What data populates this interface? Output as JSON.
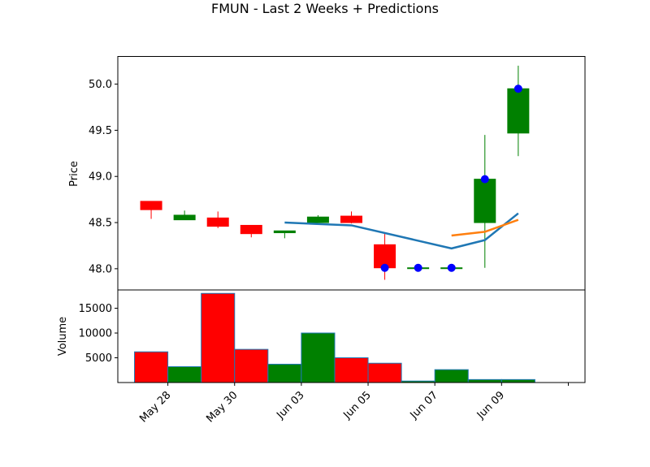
{
  "chart_data": {
    "type": "candlestick",
    "title": "FMUN - Last 2 Weeks + Predictions",
    "price_panel": {
      "ylabel": "Price",
      "ylim": [
        47.77,
        50.3
      ],
      "yticks": [
        48.0,
        48.5,
        49.0,
        49.5,
        50.0
      ],
      "ytick_labels": [
        "48.0",
        "48.5",
        "49.0",
        "49.5",
        "50.0"
      ]
    },
    "volume_panel": {
      "ylabel": "Volume",
      "ylim": [
        0,
        18700
      ],
      "yticks": [
        5000,
        10000,
        15000
      ],
      "ytick_labels": [
        "5000",
        "10000",
        "15000"
      ]
    },
    "x_axis": {
      "xlim": [
        -1,
        13
      ],
      "tick_positions": [
        0.5,
        2.5,
        4.5,
        6.5,
        8.5,
        10.5,
        12.5
      ],
      "tick_labels": [
        "May 28",
        "May 30",
        "Jun 03",
        "Jun 05",
        "Jun 07",
        "Jun 09",
        ""
      ]
    },
    "candles": [
      {
        "open": 48.73,
        "high": 48.73,
        "low": 48.54,
        "close": 48.64
      },
      {
        "open": 48.53,
        "high": 48.63,
        "low": 48.53,
        "close": 48.58
      },
      {
        "open": 48.55,
        "high": 48.62,
        "low": 48.44,
        "close": 48.46
      },
      {
        "open": 48.47,
        "high": 48.47,
        "low": 48.34,
        "close": 48.38
      },
      {
        "open": 48.39,
        "high": 48.41,
        "low": 48.33,
        "close": 48.41
      },
      {
        "open": 48.5,
        "high": 48.58,
        "low": 48.5,
        "close": 48.56
      },
      {
        "open": 48.57,
        "high": 48.62,
        "low": 48.49,
        "close": 48.5
      },
      {
        "open": 48.26,
        "high": 48.38,
        "low": 47.88,
        "close": 48.01
      },
      {
        "open": 48.01,
        "high": 48.01,
        "low": 48.01,
        "close": 48.01
      },
      {
        "open": 48.01,
        "high": 48.01,
        "low": 48.01,
        "close": 48.01
      },
      {
        "open": 48.5,
        "high": 49.45,
        "low": 48.01,
        "close": 48.97
      },
      {
        "open": 49.47,
        "high": 50.2,
        "low": 49.22,
        "close": 49.95
      }
    ],
    "volume": [
      6200,
      3200,
      18000,
      6700,
      3700,
      10000,
      5000,
      3900,
      300,
      2600,
      600,
      600
    ],
    "predicted_points": [
      {
        "x": 7,
        "y": 48.01
      },
      {
        "x": 8,
        "y": 48.01
      },
      {
        "x": 9,
        "y": 48.01
      },
      {
        "x": 10,
        "y": 48.97
      },
      {
        "x": 11,
        "y": 49.95
      }
    ],
    "series": [
      {
        "color": "#1f77b4",
        "x": [
          4,
          6,
          9,
          10,
          11
        ],
        "y": [
          48.5,
          48.47,
          48.22,
          48.31,
          48.6
        ]
      },
      {
        "color": "#ff7f0e",
        "x": [
          9,
          10,
          11
        ],
        "y": [
          48.36,
          48.4,
          48.53
        ]
      }
    ],
    "colors": {
      "up": "#008000",
      "down": "#ff0000",
      "marker": "#0000ff"
    },
    "grid": false
  }
}
